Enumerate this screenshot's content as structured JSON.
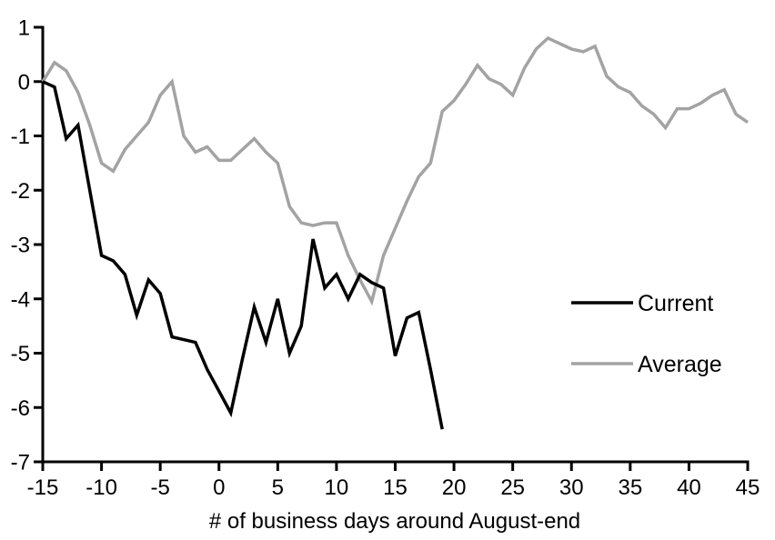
{
  "chart_data": {
    "type": "line",
    "title": "",
    "xlabel": "# of business days around August-end",
    "ylabel": "",
    "xlim": [
      -15,
      45
    ],
    "ylim": [
      -7,
      1
    ],
    "x_ticks": [
      -15,
      -10,
      -5,
      0,
      5,
      10,
      15,
      20,
      25,
      30,
      35,
      40,
      45
    ],
    "y_ticks": [
      1,
      0,
      -1,
      -2,
      -3,
      -4,
      -5,
      -6,
      -7
    ],
    "grid": false,
    "legend_position": "right-middle",
    "series": [
      {
        "name": "Current",
        "color": "#000000",
        "x": [
          -15,
          -14,
          -13,
          -12,
          -11,
          -10,
          -9,
          -8,
          -7,
          -6,
          -5,
          -4,
          -3,
          -2,
          -1,
          0,
          1,
          2,
          3,
          4,
          5,
          6,
          7,
          8,
          9,
          10,
          11,
          12,
          13,
          14,
          15,
          16,
          17,
          18,
          19
        ],
        "values": [
          0.0,
          -0.1,
          -1.05,
          -0.8,
          -2.0,
          -3.2,
          -3.3,
          -3.55,
          -4.3,
          -3.65,
          -3.9,
          -4.7,
          -4.75,
          -4.8,
          -5.3,
          -5.7,
          -6.1,
          -5.1,
          -4.15,
          -4.8,
          -4.0,
          -5.0,
          -4.5,
          -2.9,
          -3.8,
          -3.55,
          -4.0,
          -3.55,
          -3.7,
          -3.8,
          -5.05,
          -4.35,
          -4.25,
          -5.3,
          -6.4
        ]
      },
      {
        "name": "Average",
        "color": "#a3a3a3",
        "x": [
          -15,
          -14,
          -13,
          -12,
          -11,
          -10,
          -9,
          -8,
          -7,
          -6,
          -5,
          -4,
          -3,
          -2,
          -1,
          0,
          1,
          2,
          3,
          4,
          5,
          6,
          7,
          8,
          9,
          10,
          11,
          12,
          13,
          14,
          15,
          16,
          17,
          18,
          19,
          20,
          21,
          22,
          23,
          24,
          25,
          26,
          27,
          28,
          29,
          30,
          31,
          32,
          33,
          34,
          35,
          36,
          37,
          38,
          39,
          40,
          41,
          42,
          43,
          44,
          45
        ],
        "values": [
          0.0,
          0.35,
          0.2,
          -0.2,
          -0.8,
          -1.5,
          -1.65,
          -1.25,
          -1.0,
          -0.75,
          -0.25,
          0.0,
          -1.0,
          -1.3,
          -1.2,
          -1.45,
          -1.45,
          -1.25,
          -1.05,
          -1.3,
          -1.5,
          -2.3,
          -2.6,
          -2.65,
          -2.6,
          -2.6,
          -3.2,
          -3.65,
          -4.05,
          -3.2,
          -2.7,
          -2.2,
          -1.75,
          -1.5,
          -0.55,
          -0.35,
          -0.05,
          0.3,
          0.05,
          -0.05,
          -0.25,
          0.25,
          0.6,
          0.8,
          0.7,
          0.6,
          0.55,
          0.65,
          0.1,
          -0.1,
          -0.2,
          -0.45,
          -0.6,
          -0.85,
          -0.5,
          -0.5,
          -0.4,
          -0.25,
          -0.15,
          -0.6,
          -0.75
        ]
      }
    ]
  },
  "legend": {
    "items": [
      {
        "label": "Current",
        "color": "#000000"
      },
      {
        "label": "Average",
        "color": "#a3a3a3"
      }
    ]
  },
  "style": {
    "axis_color": "#000000",
    "background": "#ffffff"
  }
}
